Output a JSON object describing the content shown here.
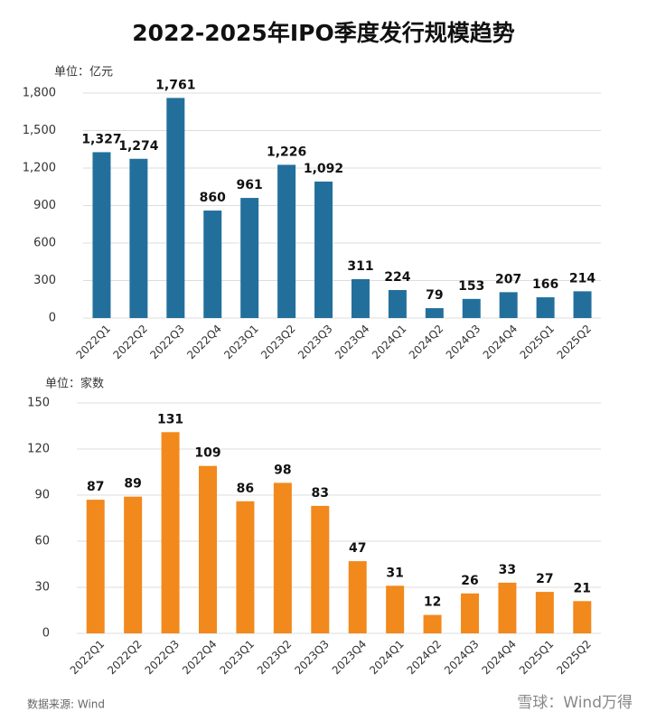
{
  "title": "2022-2025年IPO季度发行规模趋势",
  "source": "数据来源: Wind",
  "footer": "雪球：Wind万得",
  "chart_data": [
    {
      "type": "bar",
      "y_label": "单位：亿元",
      "color": "#236f9c",
      "grid": true,
      "categories": [
        "2022Q1",
        "2022Q2",
        "2022Q3",
        "2022Q4",
        "2023Q1",
        "2023Q2",
        "2023Q3",
        "2023Q4",
        "2024Q1",
        "2024Q2",
        "2024Q3",
        "2024Q4",
        "2025Q1",
        "2025Q2"
      ],
      "values": [
        1327,
        1274,
        1761,
        860,
        961,
        1226,
        1092,
        311,
        224,
        79,
        153,
        207,
        166,
        214
      ],
      "value_labels": [
        "1,327",
        "1,274",
        "1,761",
        "860",
        "961",
        "1,226",
        "1,092",
        "311",
        "224",
        "79",
        "153",
        "207",
        "166",
        "214"
      ],
      "ylim": [
        0,
        1800
      ],
      "yticks": [
        0,
        300,
        600,
        900,
        {
          "value": 1200,
          "label": "1,200"
        },
        {
          "value": 1500,
          "label": "1,500"
        },
        {
          "value": 1800,
          "label": "1,800"
        }
      ]
    },
    {
      "type": "bar",
      "y_label": "单位：家数",
      "color": "#f2891c",
      "grid": true,
      "categories": [
        "2022Q1",
        "2022Q2",
        "2022Q3",
        "2022Q4",
        "2023Q1",
        "2023Q2",
        "2023Q3",
        "2023Q4",
        "2024Q1",
        "2024Q2",
        "2024Q3",
        "2024Q4",
        "2025Q1",
        "2025Q2"
      ],
      "values": [
        87,
        89,
        131,
        109,
        86,
        98,
        83,
        47,
        31,
        12,
        26,
        33,
        27,
        21
      ],
      "ylim": [
        0,
        150
      ],
      "yticks": [
        0,
        30,
        60,
        90,
        120,
        150
      ]
    }
  ]
}
